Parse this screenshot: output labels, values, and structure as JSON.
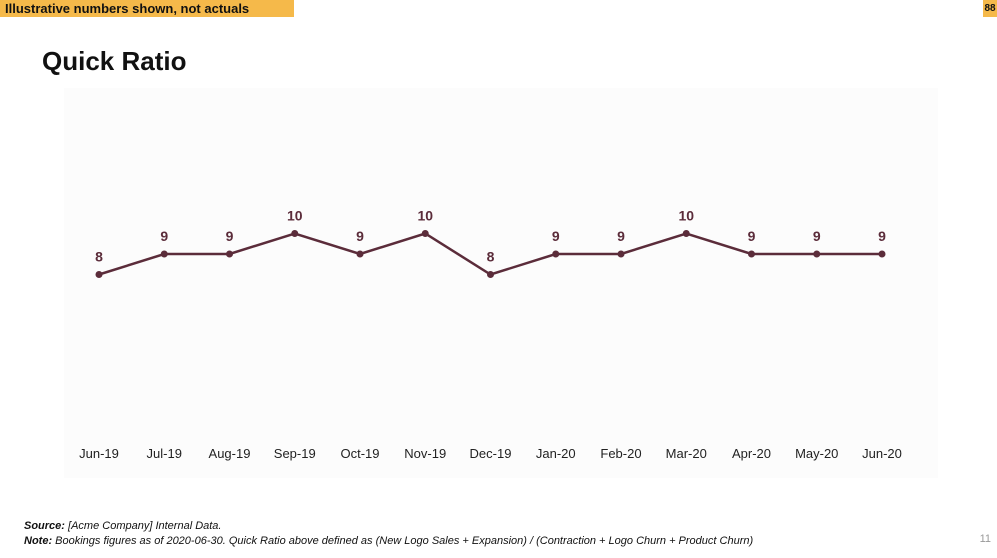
{
  "banner": {
    "text": "Illustrative numbers shown, not actuals",
    "color": "#f5b94a"
  },
  "corner_badge": {
    "text": "88"
  },
  "page": {
    "title": "Quick Ratio",
    "number": "11"
  },
  "footer": {
    "source_label": "Source:",
    "source_text": " [Acme Company] Internal Data.",
    "note_label": "Note:",
    "note_text": " Bookings figures as of 2020-06-30.  Quick Ratio above defined as (New Logo Sales + Expansion) / (Contraction + Logo Churn + Product Churn)"
  },
  "chart_data": {
    "type": "line",
    "title": "",
    "xlabel": "",
    "ylabel": "",
    "categories": [
      "Jun-19",
      "Jul-19",
      "Aug-19",
      "Sep-19",
      "Oct-19",
      "Nov-19",
      "Dec-19",
      "Jan-20",
      "Feb-20",
      "Mar-20",
      "Apr-20",
      "May-20",
      "Jun-20"
    ],
    "series": [
      {
        "values": [
          8,
          9,
          9,
          10,
          9,
          10,
          8,
          9,
          9,
          10,
          9,
          9,
          9
        ],
        "color": "#5b2c3a"
      }
    ],
    "data_labels": true,
    "grid": false,
    "legend": "none"
  }
}
